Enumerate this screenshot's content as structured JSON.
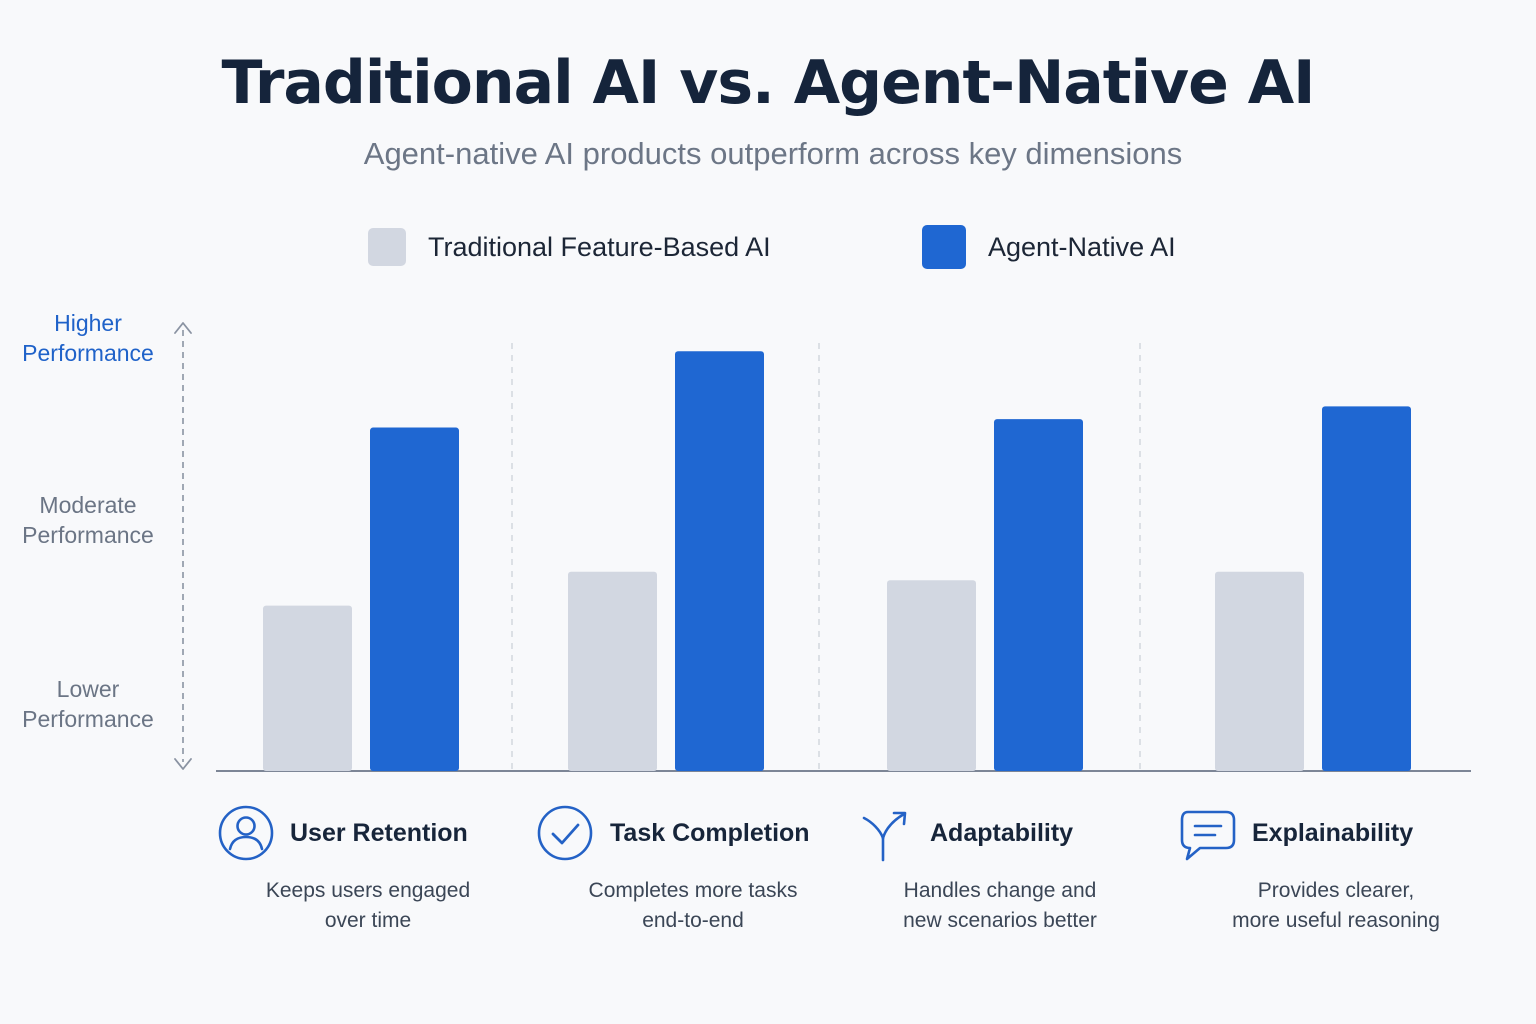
{
  "header": {
    "title": "Traditional AI vs. Agent-Native AI",
    "subtitle": "Agent-native AI products outperform across key dimensions"
  },
  "colors": {
    "traditional": "#d2d7e1",
    "agent": "#1f67d2",
    "axis": "#8a93a2",
    "divider": "#d3d7de",
    "icon": "#2462c6"
  },
  "chart_data": {
    "type": "bar",
    "categories": [
      "User Retention",
      "Task Completion",
      "Adaptability",
      "Explainability"
    ],
    "series": [
      {
        "name": "Traditional Feature-Based AI",
        "values": [
          39,
          47,
          45,
          47
        ]
      },
      {
        "name": "Agent-Native AI",
        "values": [
          81,
          99,
          83,
          86
        ]
      }
    ],
    "ylim": [
      0,
      100
    ],
    "y_ticks": [
      {
        "lines": [
          "Higher",
          "Performance"
        ],
        "accent": true
      },
      {
        "lines": [
          "Moderate",
          "Performance"
        ],
        "accent": false
      },
      {
        "lines": [
          "Lower",
          "Performance"
        ],
        "accent": false
      }
    ],
    "legend_position": "top-center",
    "grid": false
  },
  "categories": [
    {
      "icon": "user-icon",
      "title": "User Retention",
      "description": [
        "Keeps users engaged",
        "over time"
      ]
    },
    {
      "icon": "check-circle-icon",
      "title": "Task Completion",
      "description": [
        "Completes more tasks",
        "end-to-end"
      ]
    },
    {
      "icon": "branch-arrows-icon",
      "title": "Adaptability",
      "description": [
        "Handles change and",
        "new scenarios better"
      ]
    },
    {
      "icon": "chat-bubble-icon",
      "title": "Explainability",
      "description": [
        "Provides clearer,",
        "more useful reasoning"
      ]
    }
  ]
}
